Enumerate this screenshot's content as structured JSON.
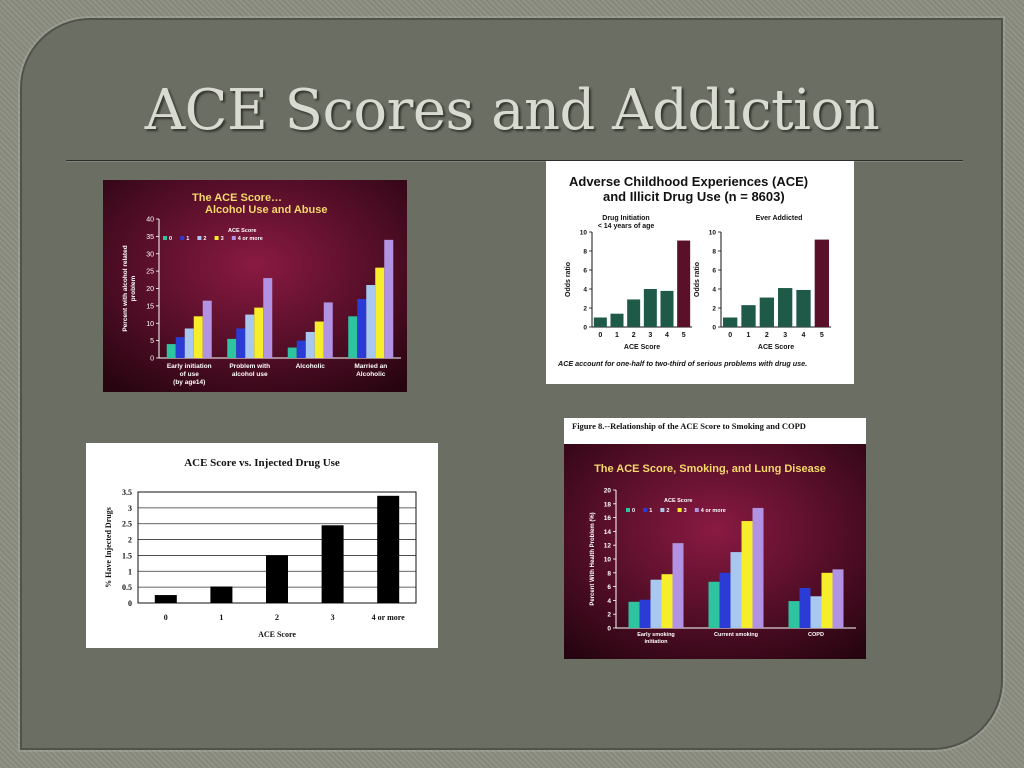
{
  "slide": {
    "title": "ACE Scores and Addiction"
  },
  "colors": {
    "ace0": "#2fc4a0",
    "ace1": "#2b3bd6",
    "ace2": "#a9c8ef",
    "ace3": "#f6ee2a",
    "ace4": "#b292e2",
    "dark_green": "#1f5a48",
    "dark_red": "#5a1028"
  },
  "chart_data": [
    {
      "type": "bar",
      "title": "The ACE Score…",
      "subtitle": "Alcohol Use and Abuse",
      "ylabel": "Percent with alcohol related problem",
      "ylim": [
        0,
        40
      ],
      "yticks": [
        "0",
        "5",
        "10",
        "15",
        "20",
        "25",
        "30",
        "35",
        "40"
      ],
      "legend_title": "ACE Score",
      "legend": [
        "0",
        "1",
        "2",
        "3",
        "4 or more"
      ],
      "categories": [
        [
          "Early initiation",
          "of use",
          "(by age14)"
        ],
        [
          "Problem with",
          "alcohol use"
        ],
        [
          "Alcoholic"
        ],
        [
          "Married an",
          "Alcoholic"
        ]
      ],
      "series": [
        {
          "name": "0",
          "values": [
            4,
            5.5,
            3,
            12
          ]
        },
        {
          "name": "1",
          "values": [
            6,
            8.5,
            5,
            17
          ]
        },
        {
          "name": "2",
          "values": [
            8.5,
            12.5,
            7.5,
            21
          ]
        },
        {
          "name": "3",
          "values": [
            12,
            14.5,
            10.5,
            26
          ]
        },
        {
          "name": "4 or more",
          "values": [
            16.5,
            23,
            16,
            34
          ]
        }
      ]
    },
    {
      "type": "bar",
      "title": "Adverse Childhood Experiences (ACE)",
      "title2": "and Illicit Drug Use (n = 8603)",
      "footnote": "ACE  account for one-half to two-third of serious problems with drug use.",
      "panels": [
        {
          "subtitle": [
            "Drug Initiation",
            "< 14 years of age"
          ],
          "ylabel": "Odds ratio",
          "xlabel": "ACE Score",
          "ylim": [
            0,
            10
          ],
          "yticks": [
            "0",
            "2",
            "4",
            "6",
            "8",
            "10"
          ],
          "categories": [
            "0",
            "1",
            "2",
            "3",
            "4",
            "5"
          ],
          "values": [
            1,
            1.4,
            2.9,
            4,
            3.8,
            9.1
          ]
        },
        {
          "subtitle": [
            "Ever Addicted"
          ],
          "ylabel": "Odds ratio",
          "xlabel": "ACE Score",
          "ylim": [
            0,
            10
          ],
          "yticks": [
            "0",
            "2",
            "4",
            "6",
            "8",
            "10"
          ],
          "categories": [
            "0",
            "1",
            "2",
            "3",
            "4",
            "5"
          ],
          "values": [
            1,
            2.3,
            3.1,
            4.1,
            3.9,
            9.2
          ]
        }
      ]
    },
    {
      "type": "bar",
      "title": "ACE Score vs. Injected Drug Use",
      "ylabel": "% Have Injected Drugs",
      "xlabel": "ACE Score",
      "ylim": [
        0,
        3.5
      ],
      "yticks": [
        "0",
        "0.5",
        "1",
        "1.5",
        "2",
        "2.5",
        "3",
        "3.5"
      ],
      "categories": [
        "0",
        "1",
        "2",
        "3",
        "4 or more"
      ],
      "values": [
        0.25,
        0.52,
        1.5,
        2.45,
        3.38
      ]
    },
    {
      "type": "bar",
      "caption": "Figure 8.--Relationship of the ACE Score to Smoking and COPD",
      "title": "The ACE Score, Smoking, and Lung Disease",
      "ylabel": "Percent With Health Problem (%)",
      "ylim": [
        0,
        20
      ],
      "yticks": [
        "0",
        "2",
        "4",
        "6",
        "8",
        "10",
        "12",
        "14",
        "16",
        "18",
        "20"
      ],
      "legend_title": "ACE Score",
      "legend": [
        "0",
        "1",
        "2",
        "3",
        "4 or more"
      ],
      "categories": [
        [
          "Early smoking",
          "initiation"
        ],
        [
          "Current smoking"
        ],
        [
          "COPD"
        ]
      ],
      "series": [
        {
          "name": "0",
          "values": [
            3.8,
            6.7,
            3.9
          ]
        },
        {
          "name": "1",
          "values": [
            4.1,
            8,
            5.8
          ]
        },
        {
          "name": "2",
          "values": [
            7,
            11,
            4.6
          ]
        },
        {
          "name": "3",
          "values": [
            7.8,
            15.5,
            8
          ]
        },
        {
          "name": "4 or more",
          "values": [
            12.3,
            17.4,
            8.5
          ]
        }
      ]
    }
  ]
}
